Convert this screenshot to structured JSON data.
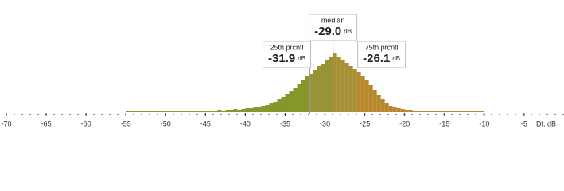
{
  "chart_data": {
    "type": "histogram",
    "x_label": "Df, dB",
    "xlim": [
      -70.8,
      0
    ],
    "xticks": [
      -70,
      -65,
      -60,
      -55,
      -50,
      -45,
      -40,
      -35,
      -30,
      -25,
      -20,
      -15,
      -10,
      -5
    ],
    "ylim": [
      0,
      80
    ],
    "bins": [
      -55,
      -54.5,
      -54,
      -53.5,
      -53,
      -52.5,
      -52,
      -51.5,
      -51,
      -50.5,
      -50,
      -49.5,
      -49,
      -48.5,
      -48,
      -47.5,
      -47,
      -46.5,
      -46,
      -45.5,
      -45,
      -44.5,
      -44,
      -43.5,
      -43,
      -42.5,
      -42,
      -41.5,
      -41,
      -40.5,
      -40,
      -39.5,
      -39,
      -38.5,
      -38,
      -37.5,
      -37,
      -36.5,
      -36,
      -35.5,
      -35,
      -34.5,
      -34,
      -33.5,
      -33,
      -32.5,
      -32,
      -31.5,
      -31,
      -30.5,
      -30,
      -29.5,
      -29,
      -28.5,
      -28,
      -27.5,
      -27,
      -26.5,
      -26,
      -25.5,
      -25,
      -24.5,
      -24,
      -23.5,
      -23,
      -22.5,
      -22,
      -21.5,
      -21,
      -20.5,
      -20,
      -19.5,
      -19,
      -18.5,
      -18,
      -17.5,
      -17,
      -16.5,
      -16,
      -15.5,
      -15,
      -14.5,
      -14,
      -13.5,
      -13,
      -12.5,
      -12,
      -11.5,
      -11,
      -10.5,
      -10
    ],
    "values": [
      1,
      1,
      1,
      1,
      1,
      1,
      1,
      1,
      1,
      1,
      1,
      1,
      1,
      1,
      1,
      1,
      1,
      2,
      1,
      2,
      2,
      2,
      2,
      3,
      2,
      3,
      3,
      4,
      3,
      4,
      5,
      5,
      6,
      7,
      8,
      9,
      11,
      13,
      16,
      19,
      23,
      27,
      31,
      36,
      40,
      45,
      48,
      53,
      58,
      60,
      66,
      70,
      74,
      70,
      66,
      62,
      58,
      54,
      50,
      45,
      40,
      34,
      28,
      22,
      16,
      11,
      8,
      6,
      5,
      4,
      3,
      3,
      2,
      2,
      2,
      2,
      1,
      2,
      1,
      1,
      1,
      1,
      1,
      1,
      1,
      1,
      1,
      1,
      1,
      1
    ],
    "region_colors": [
      "#86962a",
      "#979436",
      "#a78f36",
      "#b8872c"
    ],
    "markers": [
      {
        "label": "25th prcntl",
        "value": -31.9,
        "value_label": "-31.9",
        "unit": "dB"
      },
      {
        "label": "median",
        "value": -29.0,
        "value_label": "-29.0",
        "unit": "dB"
      },
      {
        "label": "75th prcntl",
        "value": -26.1,
        "value_label": "-26.1",
        "unit": "dB"
      }
    ]
  }
}
